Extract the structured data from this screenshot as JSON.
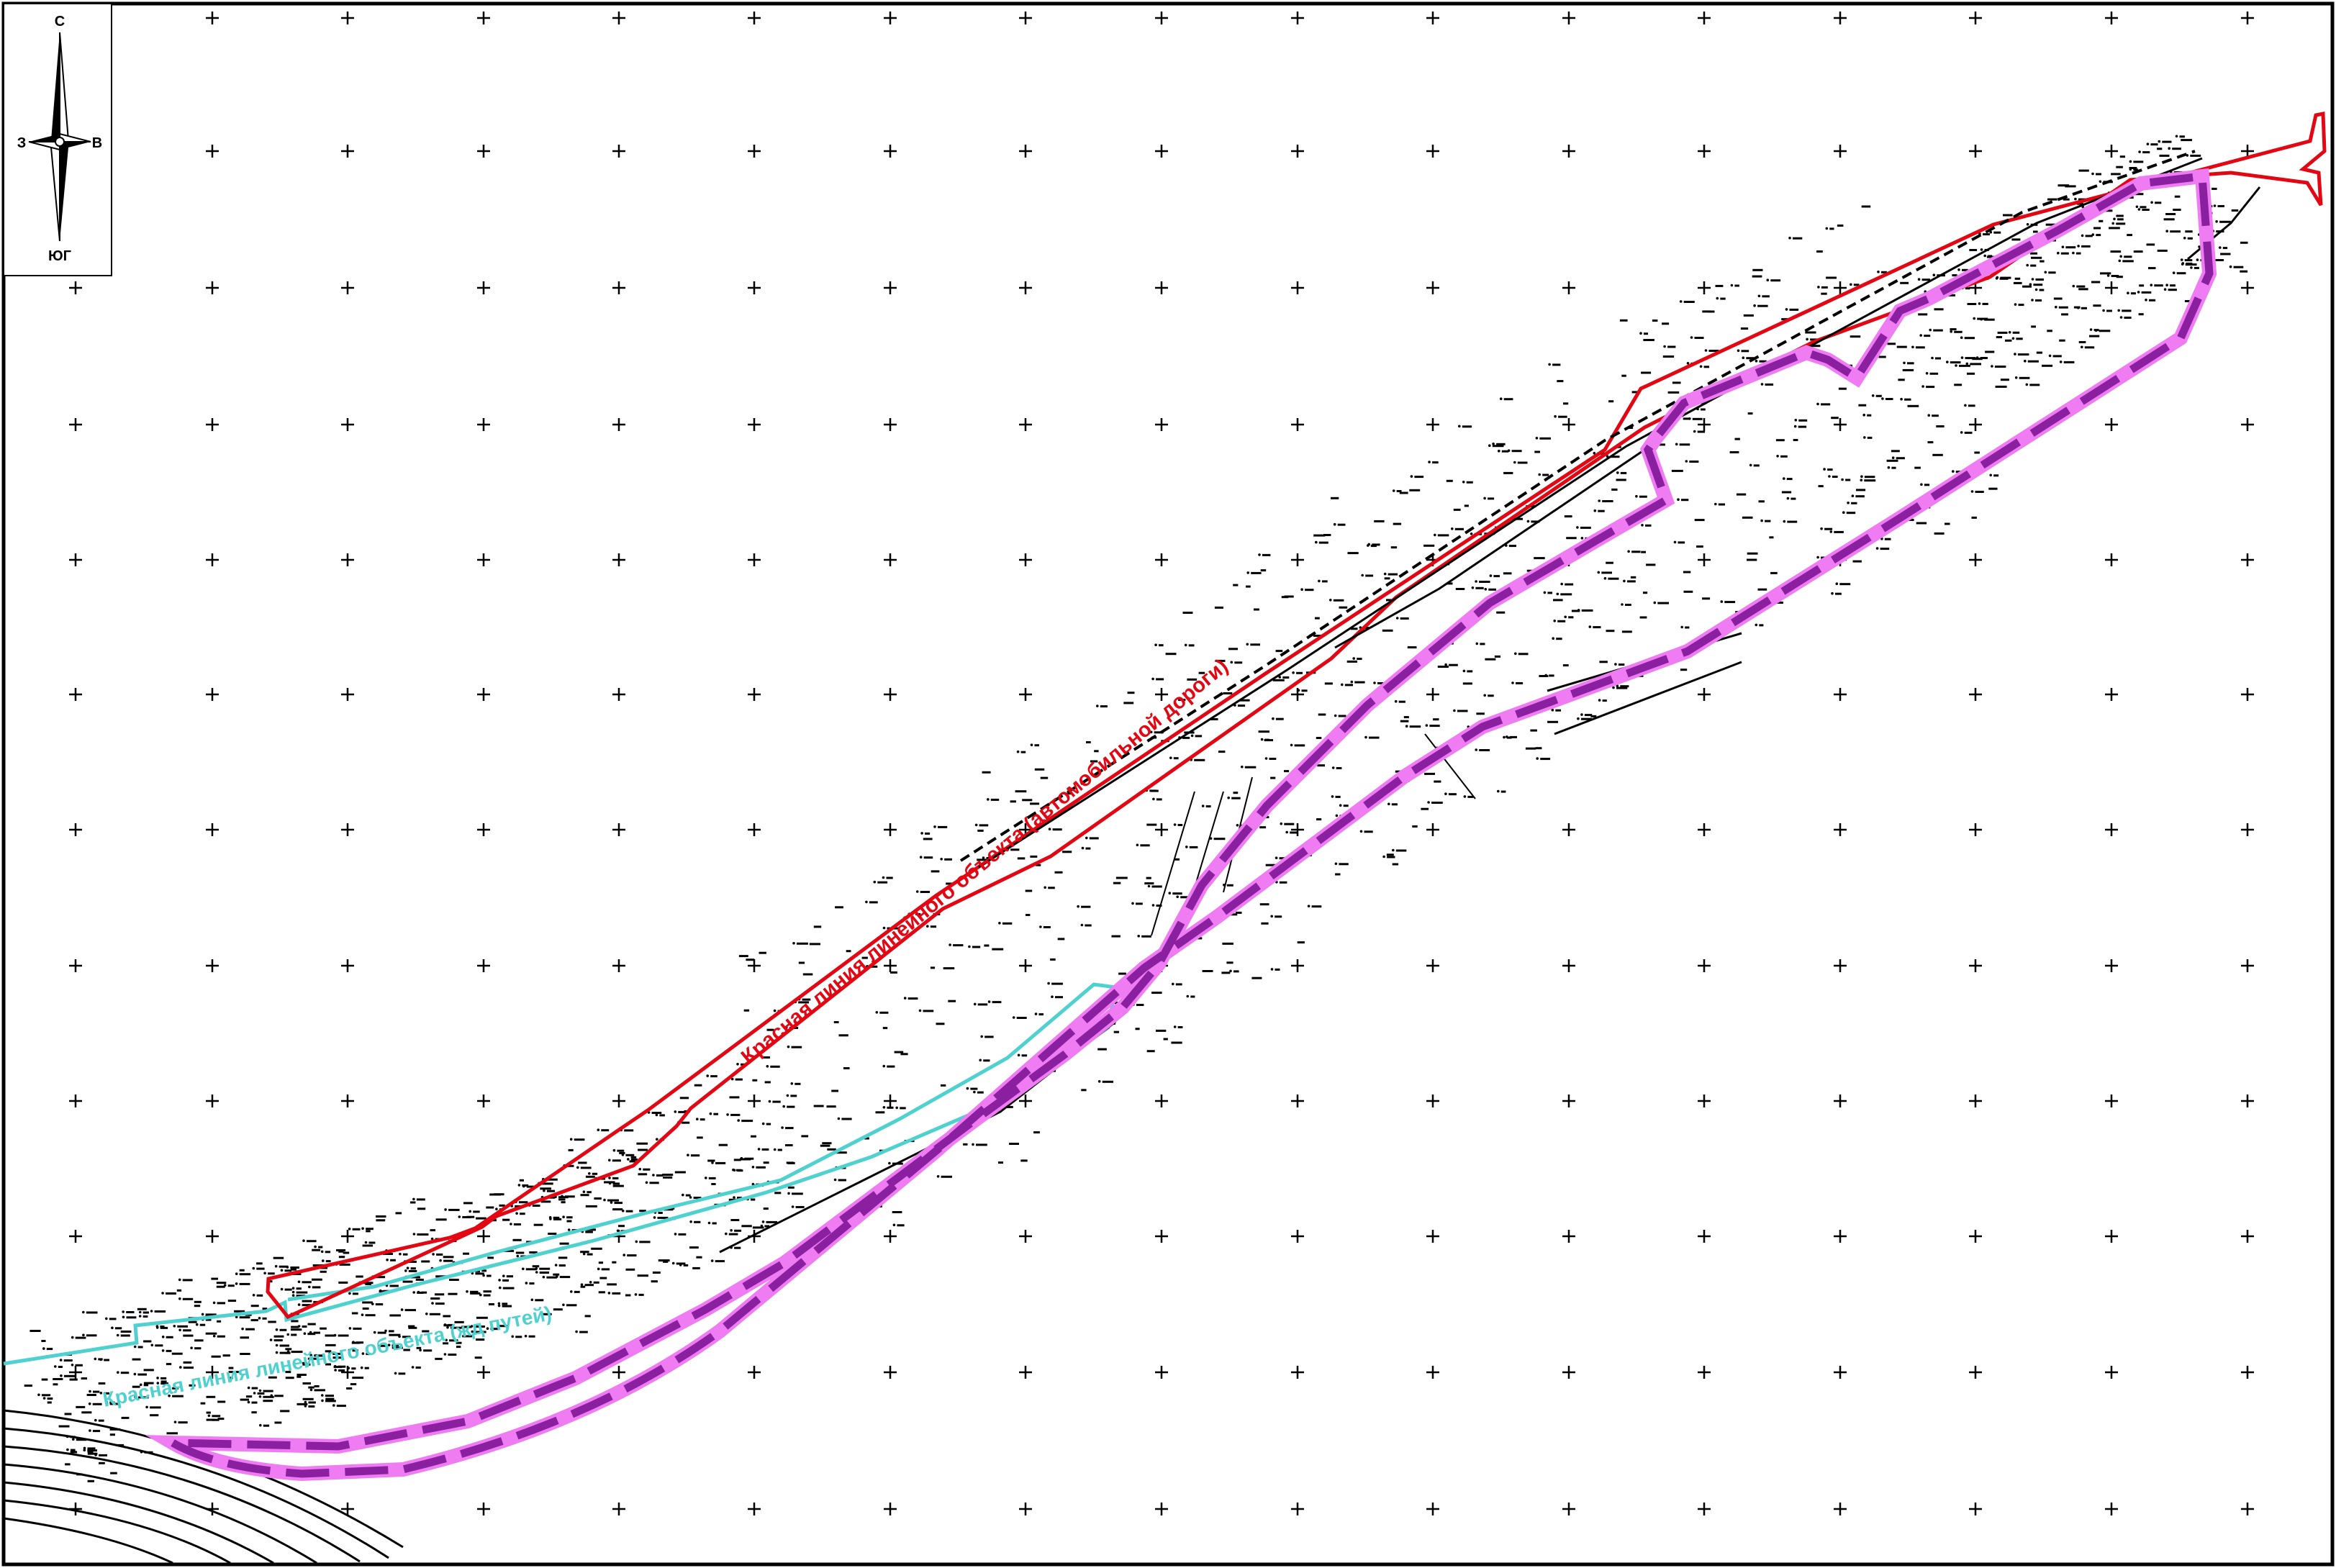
{
  "compass": {
    "north": "С",
    "west": "З",
    "east": "В",
    "south": "ЮГ"
  },
  "labels": {
    "road_red_line": "Красная линия линейного объекта (автомобильной дороги)",
    "railway_red_line": "Красная линия линейного объекта (жд путей)"
  },
  "colors": {
    "red_line": "#e30613",
    "cyan_line": "#4fd1cf",
    "boundary_dark": "#8a1fa0",
    "boundary_light": "#ef7cf2",
    "grid": "#000000",
    "frame": "#000000"
  },
  "icons": {
    "compass": "compass-rose-icon",
    "grid_cross": "grid-cross-icon"
  }
}
